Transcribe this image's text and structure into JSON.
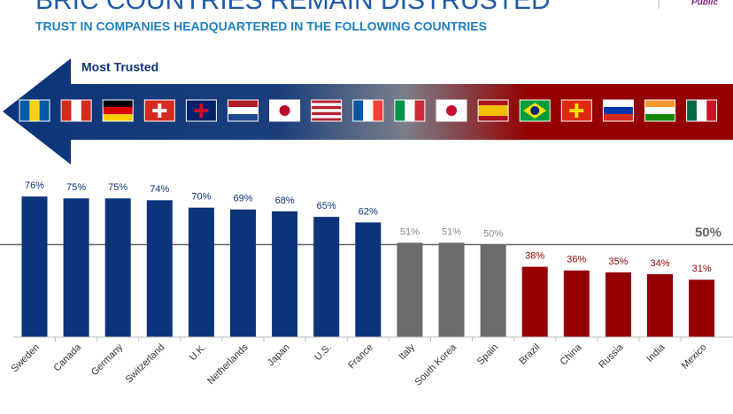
{
  "chart_data": {
    "type": "bar",
    "title": "BRIC COUNTRIES REMAIN DISTRUSTED",
    "subtitle": "TRUST IN COMPANIES HEADQUARTERED IN THE FOLLOWING COUNTRIES",
    "annotation": "Most Trusted",
    "logo_text": "Public",
    "categories": [
      "Sweden",
      "Canada",
      "Germany",
      "Switzerland",
      "U.K.",
      "Netherlands",
      "Japan",
      "U.S.",
      "France",
      "Italy",
      "South Korea",
      "Spain",
      "Brazil",
      "China",
      "Russia",
      "India",
      "Mexico"
    ],
    "values": [
      76,
      75,
      75,
      74,
      70,
      69,
      68,
      65,
      62,
      51,
      51,
      50,
      38,
      36,
      35,
      34,
      31
    ],
    "value_labels": [
      "76%",
      "75%",
      "75%",
      "74%",
      "70%",
      "69%",
      "68%",
      "65%",
      "62%",
      "51%",
      "51%",
      "50%",
      "38%",
      "36%",
      "35%",
      "34%",
      "31%"
    ],
    "colors": [
      "#0b347a",
      "#0b347a",
      "#0b347a",
      "#0b347a",
      "#0b347a",
      "#0b347a",
      "#0b347a",
      "#0b347a",
      "#0b347a",
      "#6b6b6b",
      "#6b6b6b",
      "#6b6b6b",
      "#940000",
      "#940000",
      "#940000",
      "#940000",
      "#940000"
    ],
    "ylim": [
      0,
      100
    ],
    "reference_line": {
      "value": 50,
      "label": "50%"
    }
  }
}
